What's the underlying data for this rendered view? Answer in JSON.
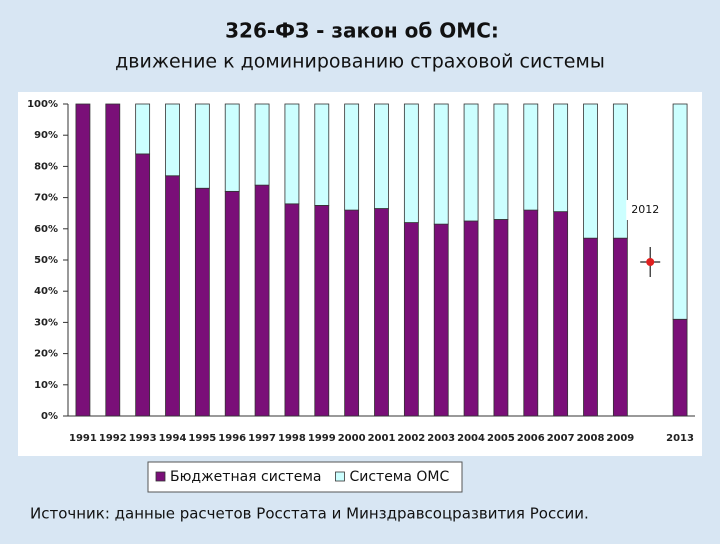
{
  "chart_data": {
    "type": "stacked_bar",
    "title": "326-ФЗ - закон об ОМС:",
    "subtitle": "движение к доминированию страховой системы",
    "categories": [
      "1991",
      "1992",
      "1993",
      "1994",
      "1995",
      "1996",
      "1997",
      "1998",
      "1999",
      "2000",
      "2001",
      "2002",
      "2003",
      "2004",
      "2005",
      "2006",
      "2007",
      "2008",
      "2009",
      null,
      "2013"
    ],
    "series": [
      {
        "name": "Бюджетная система",
        "color": "#7a0f78",
        "values": [
          100,
          100,
          84,
          77,
          73,
          72,
          74,
          68,
          67.5,
          66,
          66.5,
          62,
          61.5,
          62.5,
          63,
          66,
          65.5,
          57,
          57,
          null,
          31
        ]
      },
      {
        "name": "Система ОМС",
        "color": "#ccffff",
        "values": [
          0,
          0,
          16,
          23,
          27,
          28,
          26,
          32,
          32.5,
          34,
          33.5,
          38,
          38.5,
          37.5,
          37,
          34,
          34.5,
          43,
          43,
          null,
          69
        ]
      }
    ],
    "ylim": [
      0,
      100
    ],
    "yticks": [
      {
        "value": 0,
        "label": "0%"
      },
      {
        "value": 10,
        "label": "10%"
      },
      {
        "value": 20,
        "label": "20%"
      },
      {
        "value": 30,
        "label": "30%"
      },
      {
        "value": 40,
        "label": "40%"
      },
      {
        "value": 50,
        "label": "50%"
      },
      {
        "value": 60,
        "label": "60%"
      },
      {
        "value": 70,
        "label": "70%"
      },
      {
        "value": 80,
        "label": "80%"
      },
      {
        "value": 90,
        "label": "90%"
      },
      {
        "value": 100,
        "label": "100%"
      }
    ],
    "annotation": "2012",
    "source": "Источник: данные расчетов Росстата и Минздравсоцразвития России."
  }
}
